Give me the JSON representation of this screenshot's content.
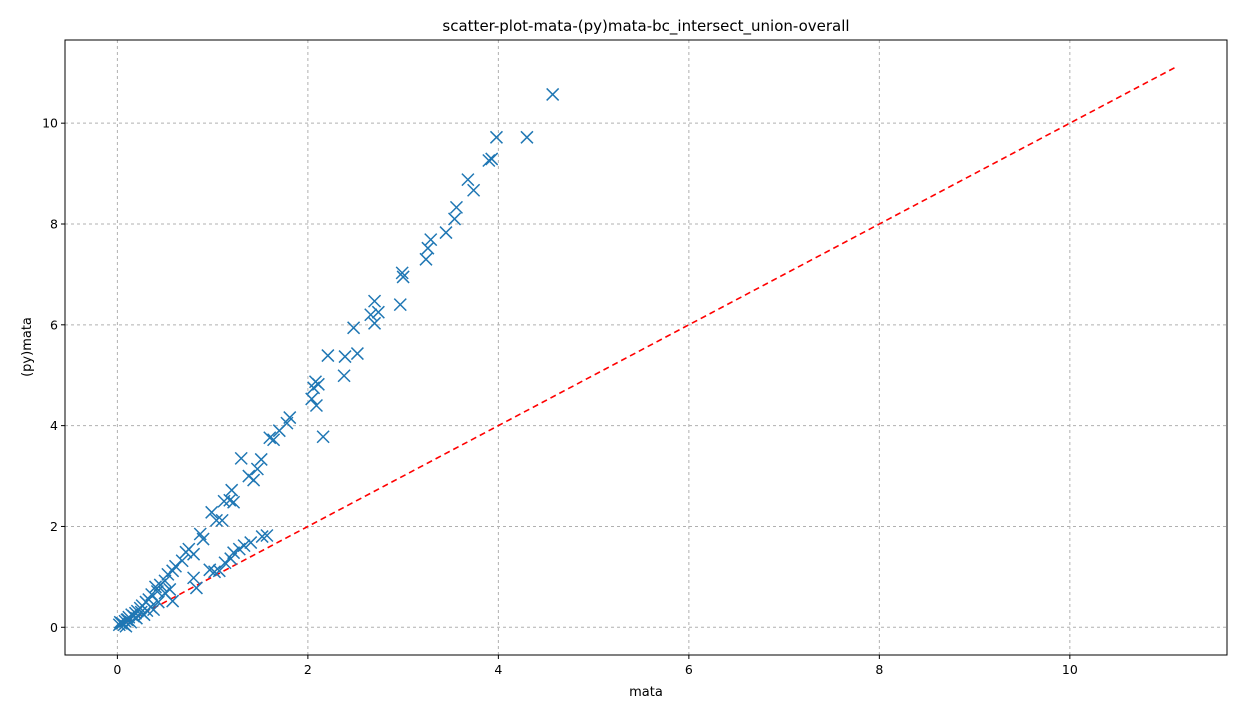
{
  "chart_data": {
    "type": "scatter",
    "title": "scatter-plot-mata-(py)mata-bc_intersect_union-overall",
    "xlabel": "mata",
    "ylabel": "(py)mata",
    "xlim": [
      -0.55,
      11.65
    ],
    "ylim": [
      -0.55,
      11.65
    ],
    "xticks": [
      0,
      2,
      4,
      6,
      8,
      10
    ],
    "yticks": [
      0,
      2,
      4,
      6,
      8,
      10
    ],
    "xtick_labels": [
      "0",
      "2",
      "4",
      "6",
      "8",
      "10"
    ],
    "ytick_labels": [
      "0",
      "2",
      "4",
      "6",
      "8",
      "10"
    ],
    "grid": true,
    "marker": "x",
    "colors": {
      "points": "#1f77b4",
      "reference": "#ff0000",
      "grid": "#b0b0b0"
    },
    "reference_line": {
      "x": [
        0,
        11.1
      ],
      "y": [
        0,
        11.1
      ],
      "style": "dashed"
    },
    "series": [
      {
        "x": [
          4.57,
          3.98,
          4.3,
          3.93,
          3.9,
          3.68,
          3.74,
          3.56,
          3.54,
          3.45,
          3.29,
          3.26,
          3.24,
          2.99,
          3.0,
          2.97,
          2.7,
          2.66,
          2.74,
          2.7,
          2.48,
          2.21,
          2.39,
          2.52,
          2.38,
          2.08,
          2.06,
          2.11,
          2.04,
          2.09,
          2.16,
          1.81,
          1.78,
          1.7,
          1.6,
          1.64,
          1.51,
          1.47,
          1.3,
          1.38,
          1.43,
          1.2,
          1.18,
          1.12,
          1.22,
          0.99,
          1.04,
          1.1,
          0.87,
          0.9,
          0.75,
          0.8,
          0.72,
          0.68,
          0.61,
          0.58,
          0.53,
          0.5,
          0.45,
          0.4,
          0.42,
          0.36,
          0.33,
          0.3,
          0.26,
          0.24,
          0.21,
          0.19,
          0.15,
          0.12,
          0.1,
          0.08,
          0.05,
          0.03,
          0.02,
          1.57,
          1.52,
          1.4,
          1.33,
          1.28,
          1.22,
          1.19,
          1.13,
          1.07,
          1.02,
          0.97,
          0.83,
          0.8,
          0.58,
          0.55,
          0.5,
          0.43,
          0.38,
          0.35,
          0.31,
          0.28,
          0.25,
          0.2,
          0.17,
          0.14,
          0.11,
          0.09,
          0.07,
          0.04
        ],
        "y": [
          10.57,
          9.72,
          9.72,
          9.29,
          9.26,
          8.88,
          8.67,
          8.33,
          8.1,
          7.83,
          7.69,
          7.52,
          7.3,
          7.03,
          6.95,
          6.4,
          6.47,
          6.2,
          6.25,
          6.03,
          5.94,
          5.39,
          5.37,
          5.43,
          4.99,
          4.87,
          4.75,
          4.82,
          4.53,
          4.4,
          3.78,
          4.16,
          4.05,
          3.9,
          3.76,
          3.72,
          3.33,
          3.14,
          3.35,
          3.0,
          2.92,
          2.72,
          2.52,
          2.5,
          2.48,
          2.28,
          2.12,
          2.12,
          1.85,
          1.75,
          1.55,
          1.45,
          1.49,
          1.32,
          1.21,
          1.12,
          1.05,
          0.92,
          0.84,
          0.8,
          0.71,
          0.65,
          0.55,
          0.5,
          0.43,
          0.38,
          0.32,
          0.28,
          0.25,
          0.2,
          0.15,
          0.12,
          0.08,
          0.1,
          0.05,
          1.82,
          1.8,
          1.68,
          1.62,
          1.55,
          1.48,
          1.36,
          1.28,
          1.12,
          1.1,
          1.14,
          0.78,
          0.98,
          0.52,
          0.75,
          0.68,
          0.5,
          0.35,
          0.4,
          0.33,
          0.25,
          0.3,
          0.18,
          0.22,
          0.1,
          0.15,
          0.02,
          0.05,
          0.08
        ]
      }
    ]
  }
}
